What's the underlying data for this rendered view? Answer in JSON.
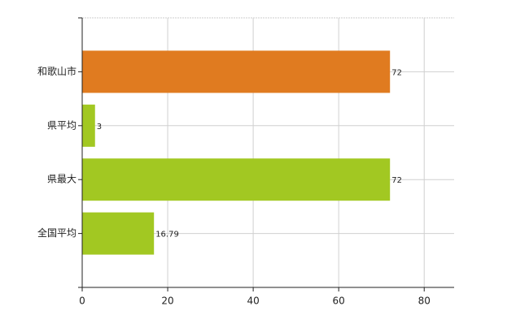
{
  "chart_data": {
    "type": "bar",
    "orientation": "horizontal",
    "categories": [
      "和歌山市",
      "県平均",
      "県最大",
      "全国平均"
    ],
    "values": [
      72,
      3,
      72,
      16.79
    ],
    "colors": [
      "#e07b20",
      "#a2c822",
      "#a2c822",
      "#a2c822"
    ],
    "xlim": [
      0,
      87
    ],
    "xticks": [
      0,
      20,
      40,
      60,
      80
    ],
    "grid": true
  }
}
